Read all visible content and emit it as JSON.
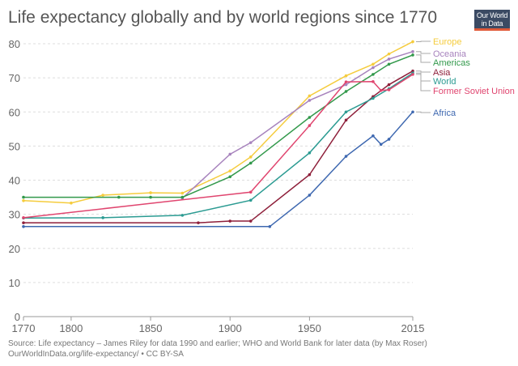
{
  "chart_data": {
    "type": "line",
    "title": "Life expectancy globally and by world regions since 1770",
    "xlabel": "",
    "ylabel": "",
    "xlim": [
      1770,
      2015
    ],
    "ylim": [
      0,
      80
    ],
    "xticks": [
      1770,
      1800,
      1850,
      1900,
      1950,
      2015
    ],
    "yticks": [
      0,
      10,
      20,
      30,
      40,
      50,
      60,
      70,
      80
    ],
    "grid": "horizontal dashed",
    "legend": "right, line-end labels",
    "series": [
      {
        "name": "Europe",
        "color": "#f5cc3d",
        "x": [
          1770,
          1800,
          1820,
          1850,
          1870,
          1900,
          1913,
          1950,
          1973,
          1990,
          2000,
          2015
        ],
        "y": [
          34,
          33.3,
          35.6,
          36.3,
          36.2,
          42.7,
          46.8,
          64.7,
          70.6,
          74,
          77,
          80.6
        ]
      },
      {
        "name": "Oceania",
        "color": "#a783bd",
        "x": [
          1870,
          1900,
          1913,
          1950,
          1973,
          1990,
          2000,
          2015
        ],
        "y": [
          34.7,
          47.6,
          51,
          63.4,
          68,
          73,
          75.5,
          77.7
        ]
      },
      {
        "name": "Americas",
        "color": "#32994b",
        "x": [
          1770,
          1830,
          1850,
          1870,
          1900,
          1913,
          1950,
          1973,
          1990,
          2000,
          2015
        ],
        "y": [
          35,
          35,
          35,
          35,
          41,
          45,
          58.4,
          66,
          71,
          74,
          76.7
        ]
      },
      {
        "name": "Asia",
        "color": "#8e1f3a",
        "x": [
          1770,
          1880,
          1900,
          1913,
          1950,
          1973,
          1990,
          2000,
          2015
        ],
        "y": [
          27.5,
          27.5,
          28,
          28,
          41.6,
          57.6,
          64.5,
          68,
          72
        ]
      },
      {
        "name": "World",
        "color": "#2b9b92",
        "x": [
          1770,
          1820,
          1870,
          1913,
          1950,
          1973,
          1990,
          2000,
          2015
        ],
        "y": [
          28.9,
          29,
          29.7,
          34.1,
          48,
          60,
          64,
          66.8,
          71.4
        ]
      },
      {
        "name": "Former Soviet Union",
        "color": "#e0456f",
        "x": [
          1770,
          1913,
          1950,
          1973,
          1990,
          1995,
          2000,
          2015
        ],
        "y": [
          29,
          36.5,
          56,
          68.8,
          68.9,
          66.3,
          66.5,
          71
        ]
      },
      {
        "name": "Africa",
        "color": "#3e68b0",
        "x": [
          1770,
          1925,
          1950,
          1973,
          1990,
          1995,
          2000,
          2015
        ],
        "y": [
          26.4,
          26.4,
          35.6,
          47,
          53,
          50.5,
          52,
          60
        ]
      }
    ]
  },
  "logo": {
    "text": "Our World in Data"
  },
  "source": {
    "line1": "Source: Life expectancy – James Riley for data 1990 and earlier; WHO and World Bank for later data (by Max Roser)",
    "line2": "OurWorldInData.org/life-expectancy/ • CC BY-SA"
  }
}
